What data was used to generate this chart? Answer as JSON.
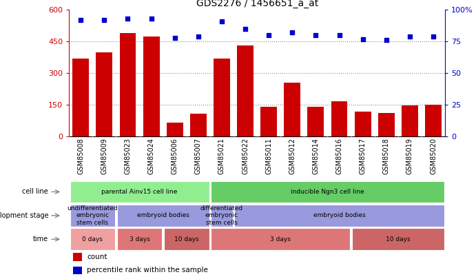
{
  "title": "GDS2276 / 1456651_a_at",
  "samples": [
    "GSM85008",
    "GSM85009",
    "GSM85023",
    "GSM85024",
    "GSM85006",
    "GSM85007",
    "GSM85021",
    "GSM85022",
    "GSM85011",
    "GSM85012",
    "GSM85014",
    "GSM85016",
    "GSM85017",
    "GSM85018",
    "GSM85019",
    "GSM85020"
  ],
  "counts": [
    370,
    400,
    490,
    475,
    68,
    108,
    370,
    430,
    140,
    255,
    140,
    168,
    120,
    112,
    148,
    152
  ],
  "percentiles": [
    92,
    92,
    93,
    93,
    78,
    79,
    91,
    85,
    80,
    82,
    80,
    80,
    77,
    76,
    79,
    79
  ],
  "bar_color": "#cc0000",
  "dot_color": "#0000cc",
  "ylim_left": [
    0,
    600
  ],
  "ylim_right": [
    0,
    100
  ],
  "yticks_left": [
    0,
    150,
    300,
    450,
    600
  ],
  "yticks_right": [
    0,
    25,
    50,
    75,
    100
  ],
  "yticklabels_right": [
    "0",
    "25",
    "50",
    "75",
    "100%"
  ],
  "cell_line_segments": [
    {
      "text": "parental Ainv15 cell line",
      "start": 0,
      "end": 6,
      "color": "#90ee90"
    },
    {
      "text": "inducible Ngn3 cell line",
      "start": 6,
      "end": 16,
      "color": "#66cc66"
    }
  ],
  "dev_stage_segments": [
    {
      "text": "undifferentiated\nembryonic\nstem cells",
      "start": 0,
      "end": 2,
      "color": "#9999dd"
    },
    {
      "text": "embryoid bodies",
      "start": 2,
      "end": 6,
      "color": "#9999dd"
    },
    {
      "text": "differentiated\nembryonic\nstem cells",
      "start": 6,
      "end": 7,
      "color": "#9999dd"
    },
    {
      "text": "embryoid bodies",
      "start": 7,
      "end": 16,
      "color": "#9999dd"
    }
  ],
  "time_segments": [
    {
      "text": "0 days",
      "start": 0,
      "end": 2,
      "color": "#f0a0a0"
    },
    {
      "text": "3 days",
      "start": 2,
      "end": 4,
      "color": "#dd7777"
    },
    {
      "text": "10 days",
      "start": 4,
      "end": 6,
      "color": "#cc6666"
    },
    {
      "text": "3 days",
      "start": 6,
      "end": 12,
      "color": "#dd7777"
    },
    {
      "text": "10 days",
      "start": 12,
      "end": 16,
      "color": "#cc6666"
    }
  ],
  "row_labels": [
    "cell line",
    "development stage",
    "time"
  ],
  "legend_items": [
    {
      "color": "#cc0000",
      "label": "count"
    },
    {
      "color": "#0000cc",
      "label": "percentile rank within the sample"
    }
  ],
  "bg_color": "#ffffff",
  "xtick_bg": "#cccccc",
  "grid_color": "#888888"
}
